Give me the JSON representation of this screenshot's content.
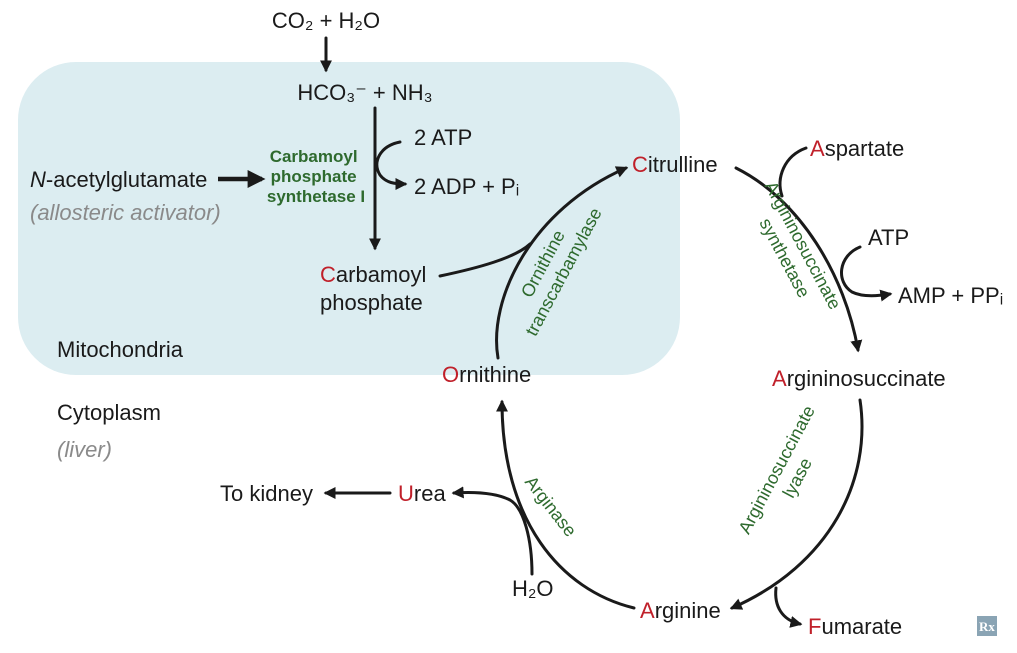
{
  "diagram": {
    "co2_h2o": "CO₂ + H₂O",
    "hco3_nh3": "HCO₃⁻ + NH₃",
    "atp_in": "2 ATP",
    "adp_out": "2 ADP + Pᵢ",
    "n_acetylglutamate_prefix": "N",
    "n_acetylglutamate_rest": "-acetylglutamate",
    "allosteric_activator": "(allosteric activator)",
    "enzyme_cps1": [
      "Carbamoyl",
      "phosphate",
      "synthetase I"
    ],
    "carbamoyl_phosphate": {
      "initial": "C",
      "rest": "arbamoyl",
      "line2": "phosphate"
    },
    "citrulline": {
      "initial": "C",
      "rest": "itrulline"
    },
    "ornithine": {
      "initial": "O",
      "rest": "rnithine"
    },
    "aspartate": {
      "initial": "A",
      "rest": "spartate"
    },
    "argininosuccinate": {
      "initial": "A",
      "rest": "rgininosuccinate"
    },
    "arginine": {
      "initial": "A",
      "rest": "rginine"
    },
    "fumarate": {
      "initial": "F",
      "rest": "umarate"
    },
    "urea": {
      "initial": "U",
      "rest": "rea"
    },
    "to_kidney": "To kidney",
    "h2o": "H₂O",
    "atp_single": "ATP",
    "amp_ppi": "AMP + PPᵢ",
    "enzyme_otc": [
      "Ornithine",
      "transcarbamylase"
    ],
    "enzyme_ass": [
      "Argininosuccinate",
      "synthetase"
    ],
    "enzyme_asl": [
      "Argininosuccinate",
      "lyase"
    ],
    "enzyme_arginase": "Arginase",
    "mitochondria": "Mitochondria",
    "cytoplasm": "Cytoplasm",
    "liver": "(liver)",
    "logo_text": "Rx"
  },
  "colors": {
    "mitochondria_fill": "#dcedf1",
    "enzyme_green": "#2e6a2e",
    "initial_red": "#c0202a",
    "logo_bg": "#8aa4b4"
  }
}
